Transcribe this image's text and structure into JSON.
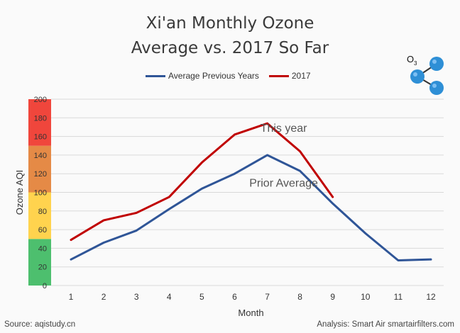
{
  "title_line1": "Xi'an Monthly Ozone",
  "title_line2": "Average vs. 2017 So Far",
  "footer": {
    "source": "Source: aqistudy.cn",
    "analysis": "Analysis: Smart Air smartairfilters.com"
  },
  "molecule_label": "O",
  "molecule_subscript": "3",
  "colors": {
    "average": "#2f5597",
    "year2017": "#c00000",
    "grid": "#d9d9d9",
    "band_red": "#f0463c",
    "band_orange": "#e58a46",
    "band_yellow": "#ffd34e",
    "band_green": "#4dbf6e",
    "molecule": "#2e8fd6"
  },
  "chart_data": {
    "type": "line",
    "x": [
      1,
      2,
      3,
      4,
      5,
      6,
      7,
      8,
      9,
      10,
      11,
      12
    ],
    "xlabel": "Month",
    "ylabel": "Ozone AQI",
    "ylim": [
      0,
      200
    ],
    "yticks": [
      0,
      20,
      40,
      60,
      80,
      100,
      120,
      140,
      160,
      180,
      200
    ],
    "grid": true,
    "legend_position": "top",
    "series": [
      {
        "name": "Average Previous Years",
        "color": "#2f5597",
        "values": [
          28,
          46,
          59,
          82,
          104,
          120,
          140,
          123,
          88,
          56,
          27,
          28
        ]
      },
      {
        "name": "2017",
        "color": "#c00000",
        "values": [
          49,
          70,
          78,
          95,
          132,
          162,
          174,
          144,
          95,
          null,
          null,
          null
        ]
      }
    ],
    "aqi_bands": [
      {
        "from": 0,
        "to": 50,
        "color": "#4dbf6e"
      },
      {
        "from": 50,
        "to": 100,
        "color": "#ffd34e"
      },
      {
        "from": 100,
        "to": 150,
        "color": "#e58a46"
      },
      {
        "from": 150,
        "to": 200,
        "color": "#f0463c"
      }
    ],
    "annotations": [
      {
        "text": "This year",
        "x": 7.5,
        "y": 165
      },
      {
        "text": "Prior Average",
        "x": 7.5,
        "y": 106
      }
    ]
  }
}
